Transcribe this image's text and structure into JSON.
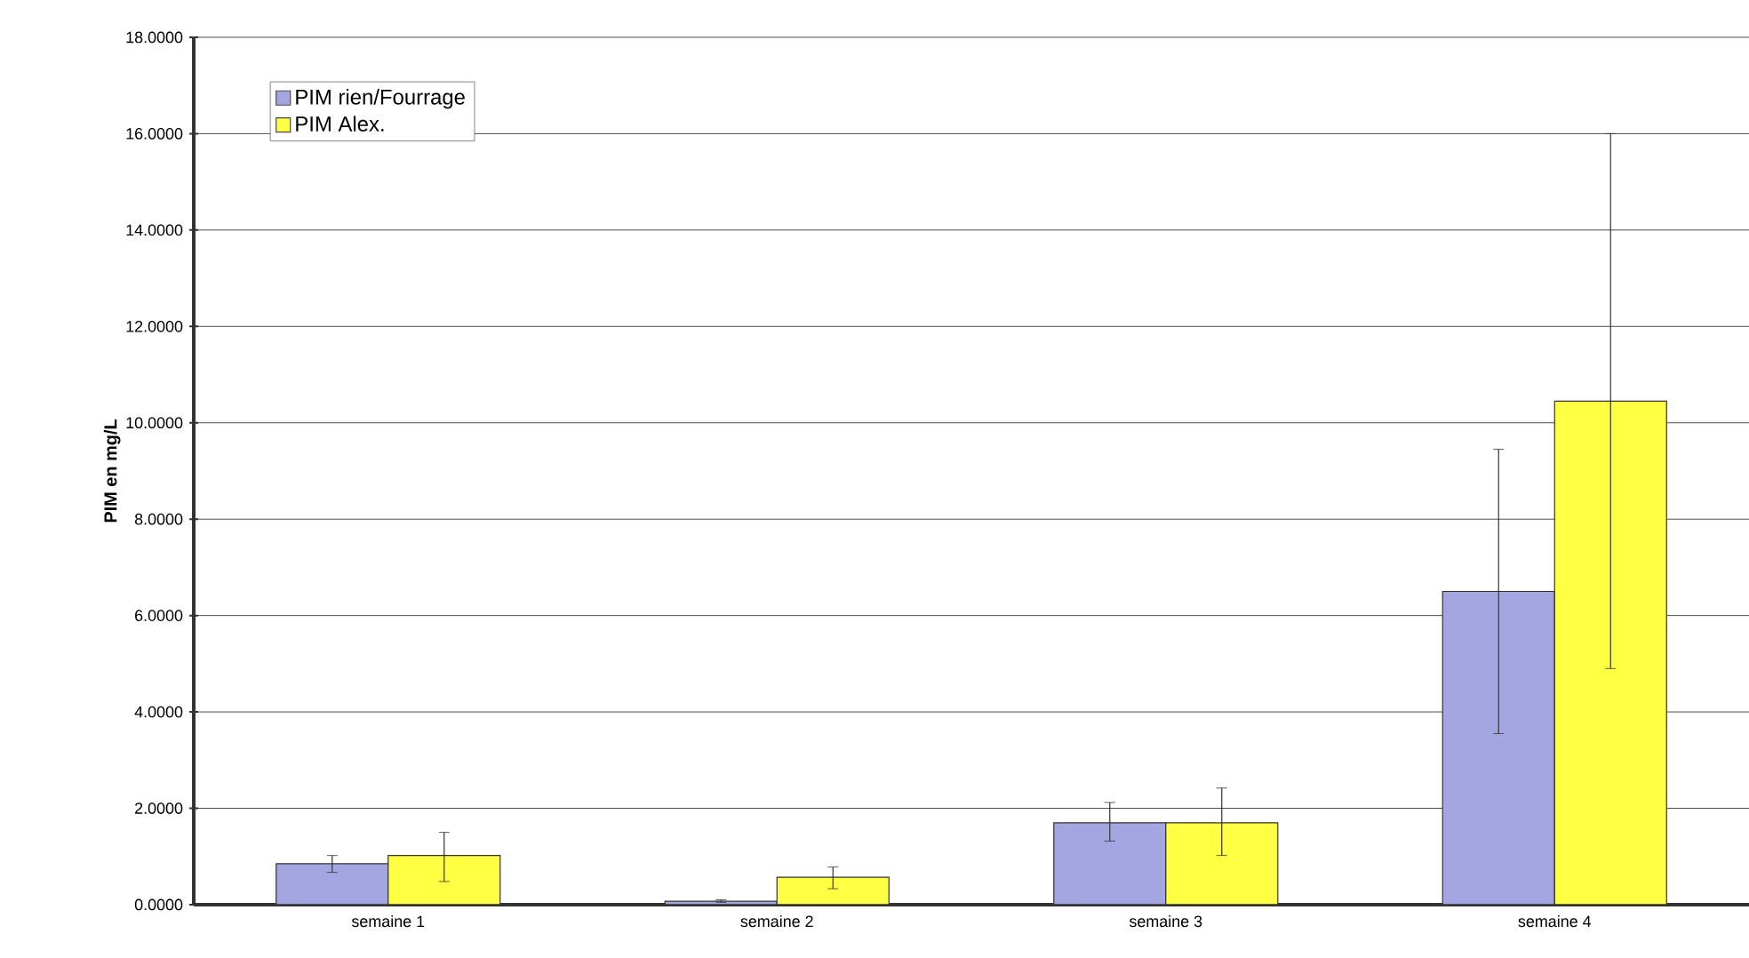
{
  "chart_data": {
    "type": "bar",
    "ylabel": "PIM en mg/L",
    "categories": [
      "semaine 1",
      "semaine 2",
      "semaine 3",
      "semaine 4"
    ],
    "series": [
      {
        "name": "PIM rien/Fourrage",
        "color": "#a4a6e2",
        "values": [
          0.85,
          0.07,
          1.7,
          6.5
        ],
        "errors": [
          [
            0.67,
            1.02
          ],
          [
            0.05,
            0.1
          ],
          [
            1.32,
            2.12
          ],
          [
            3.55,
            9.45
          ]
        ]
      },
      {
        "name": "PIM Alex.",
        "color": "#ffff44",
        "values": [
          1.02,
          0.57,
          1.7,
          10.45
        ],
        "errors": [
          [
            0.48,
            1.5
          ],
          [
            0.33,
            0.78
          ],
          [
            1.02,
            2.42
          ],
          [
            4.9,
            16.0
          ]
        ]
      }
    ],
    "ylim": [
      0,
      18
    ],
    "yticks": [
      {
        "value": 0,
        "label": "0.0000"
      },
      {
        "value": 2,
        "label": "2.0000"
      },
      {
        "value": 4,
        "label": "4.0000"
      },
      {
        "value": 6,
        "label": "6.0000"
      },
      {
        "value": 8,
        "label": "8.0000"
      },
      {
        "value": 10,
        "label": "10.0000"
      },
      {
        "value": 12,
        "label": "12.0000"
      },
      {
        "value": 14,
        "label": "14.0000"
      },
      {
        "value": 16,
        "label": "16.0000"
      },
      {
        "value": 18,
        "label": "18.0000"
      }
    ],
    "grid": "y",
    "legend": "top left"
  }
}
